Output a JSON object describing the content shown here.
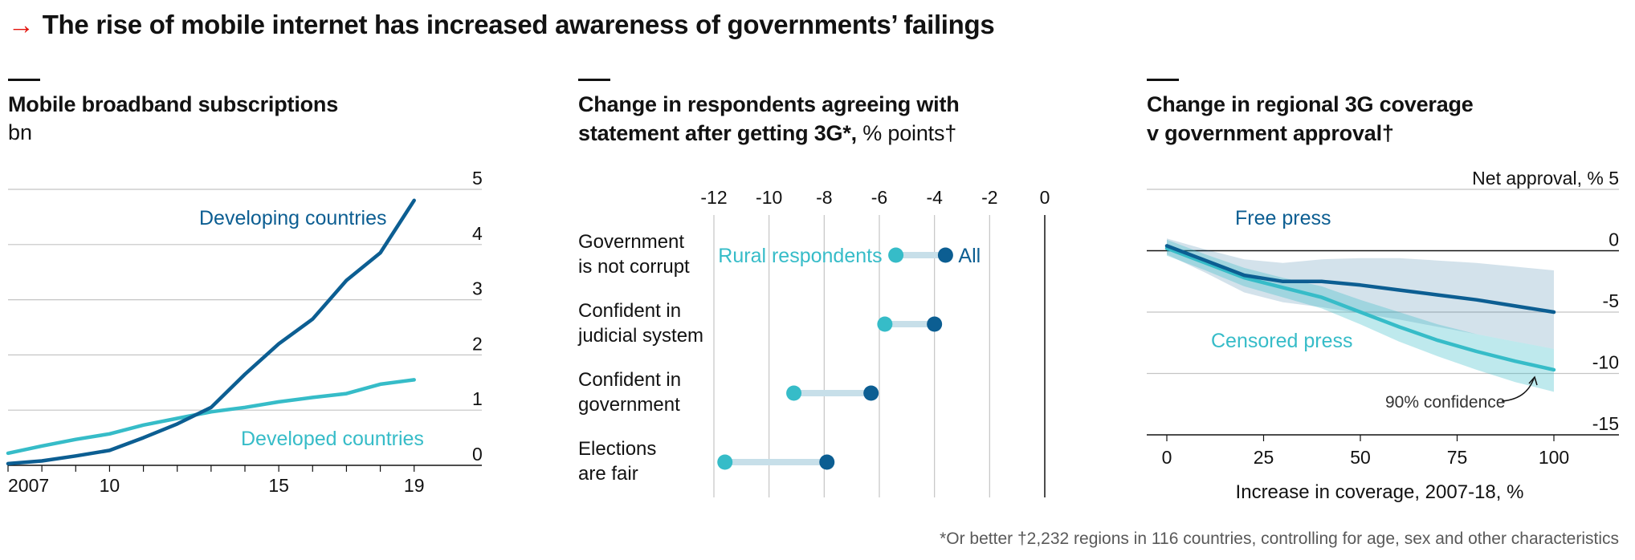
{
  "headline": {
    "arrow": "→",
    "text": "The rise of mobile internet has increased awareness of governments’ failings"
  },
  "footnote": "*Or better †2,232 regions in 116 countries, controlling for age, sex and other characteristics",
  "colors": {
    "dark_blue": "#0c5e92",
    "light_blue": "#36bcc8",
    "accent_red": "#e3120b",
    "grid": "#c4c4c4"
  },
  "panels": {
    "p1": {
      "title": "Mobile broadband subscriptions",
      "unit": "bn"
    },
    "p2": {
      "title_line1": "Change in respondents agreeing with",
      "title_line2": "statement after getting 3G*,",
      "unit": "% points†"
    },
    "p3": {
      "title_line1": "Change in regional 3G coverage",
      "title_line2": "v government approval†"
    }
  },
  "chart_data": [
    {
      "type": "line",
      "title": "Mobile broadband subscriptions",
      "ylabel": "bn",
      "x": [
        2007,
        2008,
        2009,
        2010,
        2011,
        2012,
        2013,
        2014,
        2015,
        2016,
        2017,
        2018,
        2019
      ],
      "x_tick_labels": [
        "2007",
        "10",
        "15",
        "19"
      ],
      "x_tick_values": [
        2007,
        2010,
        2015,
        2019
      ],
      "xlim": [
        2007,
        2021
      ],
      "ylim": [
        0,
        5
      ],
      "y_ticks": [
        0,
        1,
        2,
        3,
        4,
        5
      ],
      "grid": true,
      "series": [
        {
          "name": "Developing countries",
          "color": "#0c5e92",
          "values": [
            0.03,
            0.08,
            0.17,
            0.27,
            0.5,
            0.75,
            1.05,
            1.65,
            2.2,
            2.65,
            3.35,
            3.85,
            4.8
          ]
        },
        {
          "name": "Developed countries",
          "color": "#36bcc8",
          "values": [
            0.22,
            0.35,
            0.47,
            0.57,
            0.73,
            0.85,
            0.97,
            1.05,
            1.15,
            1.23,
            1.3,
            1.47,
            1.55
          ]
        }
      ]
    },
    {
      "type": "dot",
      "title": "Change in respondents agreeing with statement after getting 3G*, % points†",
      "xlim": [
        -12.3,
        0.2
      ],
      "x_ticks": [
        -12,
        -10,
        -8,
        -6,
        -4,
        -2,
        0
      ],
      "grid": true,
      "categories": [
        "Government\nis not corrupt",
        "Confident in\njudicial system",
        "Confident in\ngovernment",
        "Elections\nare fair"
      ],
      "series": [
        {
          "name": "Rural respondents",
          "color": "#36bcc8",
          "values": [
            -5.4,
            -5.8,
            -9.1,
            -11.6
          ]
        },
        {
          "name": "All",
          "color": "#0c5e92",
          "values": [
            -3.6,
            -4.0,
            -6.3,
            -7.9
          ]
        }
      ]
    },
    {
      "type": "line",
      "title": "Change in regional 3G coverage v government approval†",
      "xlabel": "Increase in coverage, 2007-18, %",
      "ylabel": "Net approval, %",
      "xlim": [
        -3,
        110
      ],
      "ylim": [
        -15,
        5
      ],
      "x_ticks": [
        0,
        25,
        50,
        75,
        100
      ],
      "y_ticks": [
        5,
        0,
        -5,
        -10,
        -15
      ],
      "grid": true,
      "annotation": "90% confidence",
      "series": [
        {
          "name": "Free press",
          "color": "#0c5e92",
          "x": [
            0,
            10,
            20,
            30,
            40,
            50,
            60,
            70,
            80,
            90,
            100
          ],
          "values": [
            0.4,
            -0.8,
            -2.0,
            -2.5,
            -2.5,
            -2.8,
            -3.2,
            -3.6,
            -4.0,
            -4.5,
            -5.0
          ],
          "lower": [
            -0.3,
            -1.8,
            -3.4,
            -4.2,
            -4.6,
            -5.1,
            -5.6,
            -6.2,
            -6.8,
            -7.4,
            -8.0
          ],
          "upper": [
            1.0,
            0.1,
            -0.7,
            -1.0,
            -0.7,
            -0.6,
            -0.6,
            -0.8,
            -1.0,
            -1.3,
            -1.6
          ]
        },
        {
          "name": "Censored press",
          "color": "#36bcc8",
          "x": [
            0,
            10,
            20,
            30,
            40,
            50,
            60,
            70,
            80,
            90,
            100
          ],
          "values": [
            0.2,
            -1.0,
            -2.2,
            -3.0,
            -3.8,
            -5.0,
            -6.2,
            -7.3,
            -8.2,
            -9.0,
            -9.7
          ],
          "lower": [
            -0.4,
            -1.6,
            -2.9,
            -3.8,
            -4.7,
            -6.0,
            -7.4,
            -8.6,
            -9.7,
            -10.7,
            -11.5
          ],
          "upper": [
            0.9,
            -0.3,
            -1.4,
            -2.2,
            -2.9,
            -4.0,
            -5.0,
            -6.0,
            -6.8,
            -7.4,
            -8.0
          ]
        }
      ]
    }
  ]
}
